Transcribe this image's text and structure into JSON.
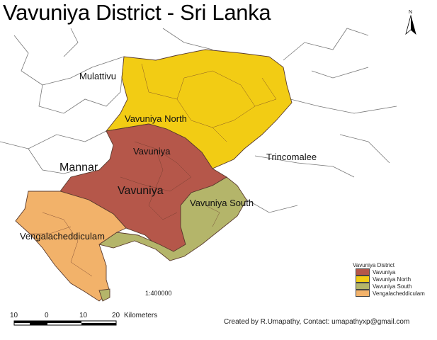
{
  "title": "Vavuniya District - Sri Lanka",
  "map": {
    "region_labels": {
      "mulattivu": "Mulattivu",
      "vavuniya_north": "Vavuniya North",
      "vavuniya_div": "Vavuniya",
      "mannar": "Mannar",
      "vavuniya_main": "Vavuniya",
      "trincomalee": "Trincomalee",
      "vavuniya_south": "Vavuniya South",
      "vengalacheddiculam": "Vengalacheddiculam"
    },
    "north_arrow_label": "N"
  },
  "legend": {
    "title": "Vavuniya District",
    "items": [
      {
        "label": "Vavuniya",
        "color": "#b5574a"
      },
      {
        "label": "Vavuniya North",
        "color": "#f2cc14"
      },
      {
        "label": "Vavuniya South",
        "color": "#b4b56a"
      },
      {
        "label": "Vengalacheddiculam",
        "color": "#f2b26a"
      }
    ]
  },
  "scale": {
    "ratio": "1:400000",
    "ticks": [
      "10",
      "0",
      "10",
      "20"
    ],
    "unit": "Kilometers"
  },
  "credit": "Created by R.Umapathy, Contact: umapathyxp@gmail.com"
}
